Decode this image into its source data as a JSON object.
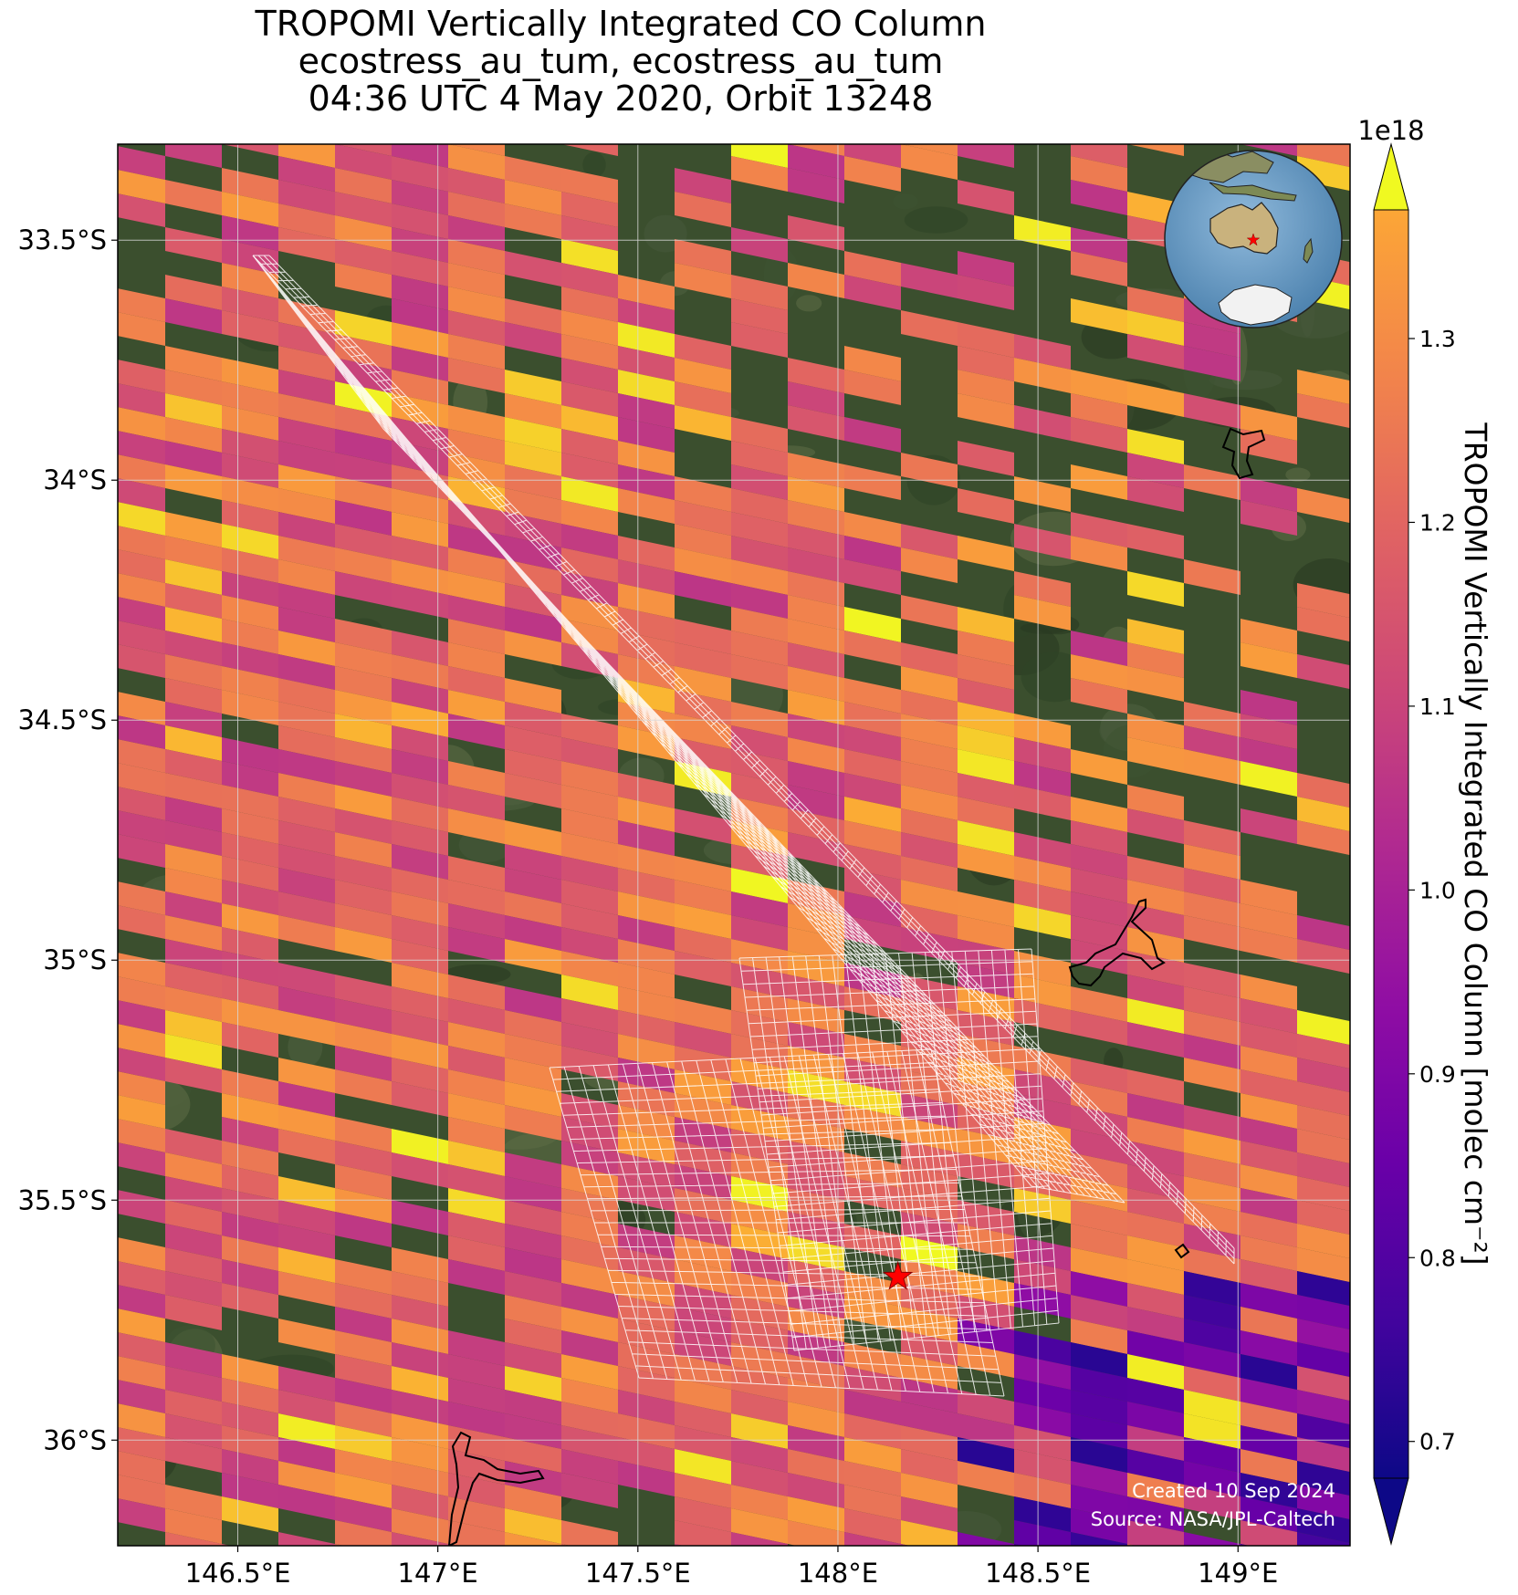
{
  "title": {
    "line1": "TROPOMI Vertically Integrated CO Column",
    "line2": "ecostress_au_tum, ecostress_au_tum",
    "line3": "04:36 UTC 4 May 2020, Orbit 13248"
  },
  "map": {
    "lon_range": [
      146.2,
      149.28
    ],
    "lat_range": [
      -36.22,
      -33.3
    ],
    "lon_ticks": [
      "146.5°E",
      "147°E",
      "147.5°E",
      "148°E",
      "148.5°E",
      "149°E"
    ],
    "lat_ticks": [
      "33.5°S",
      "34°S",
      "34.5°S",
      "35°S",
      "35.5°S",
      "36°S"
    ],
    "target_site": {
      "lon": 148.15,
      "lat": -35.66,
      "marker": "red-star"
    },
    "gridlines": true,
    "basemap": "satellite-imagery"
  },
  "inset_globe": {
    "content": "orthographic-globe-australia",
    "marker": "red-star"
  },
  "colorbar": {
    "label": "TROPOMI Vertically Integrated CO Column [molec cm⁻²]",
    "multiplier": "1e18",
    "range": [
      0.68,
      1.37
    ],
    "ticks": [
      "0.7",
      "0.8",
      "0.9",
      "1.0",
      "1.1",
      "1.2",
      "1.3"
    ],
    "colormap": "plasma",
    "extend": "both"
  },
  "footer": {
    "created": "Created 10 Sep 2024",
    "source": "Source: NASA/JPL-Caltech"
  },
  "colors": {
    "star": "#ff0000",
    "grid": "#d8d8d8",
    "land_dark": "#364a2a",
    "ocean": "#6c9ec3"
  }
}
